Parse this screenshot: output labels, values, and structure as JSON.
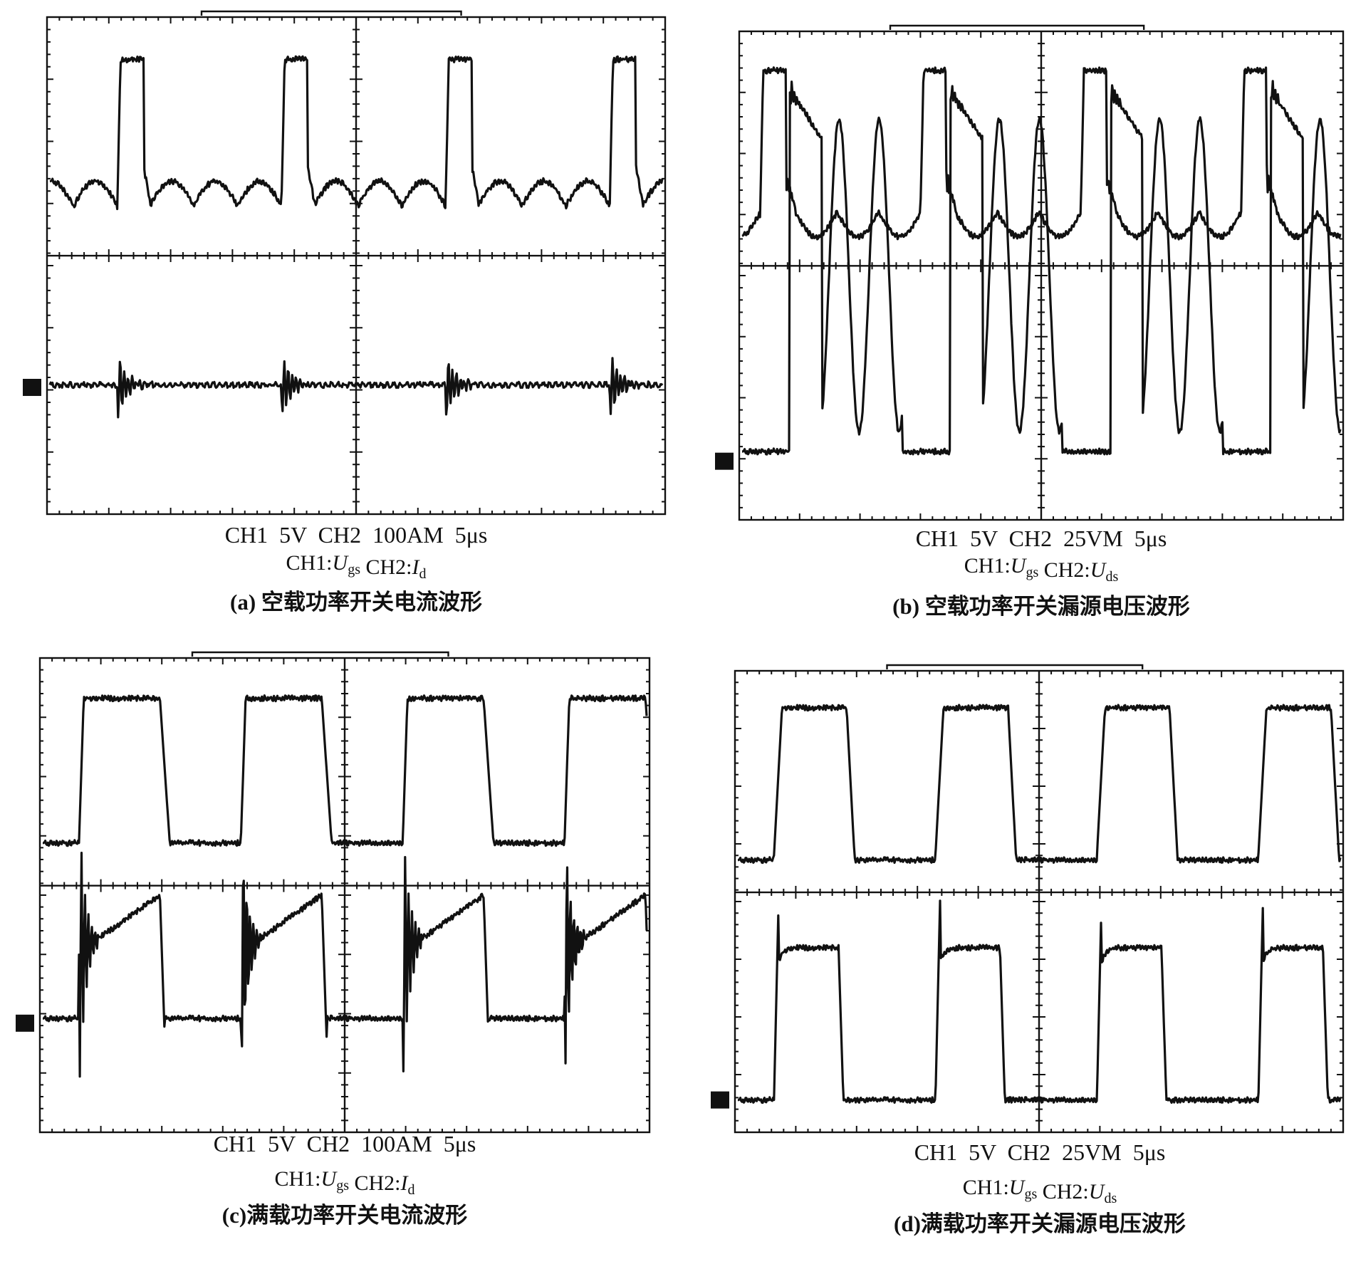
{
  "panels": [
    {
      "settings": "CH1  5V  CH2  100AM  5μs",
      "channels": [
        {
          "label": "CH1:",
          "symbol": "U",
          "subscript": "gs"
        },
        {
          "label": "CH2:",
          "symbol": "I",
          "subscript": "d"
        }
      ],
      "caption": "(a) 空载功率开关电流波形"
    },
    {
      "settings": "CH1  5V  CH2  25VM  5μs",
      "channels": [
        {
          "label": "CH1:",
          "symbol": "U",
          "subscript": "gs"
        },
        {
          "label": "CH2:",
          "symbol": "U",
          "subscript": "ds"
        }
      ],
      "caption": "(b) 空载功率开关漏源电压波形"
    },
    {
      "settings": "CH1  5V  CH2  100AM  5μs",
      "channels": [
        {
          "label": "CH1:",
          "symbol": "U",
          "subscript": "gs"
        },
        {
          "label": "CH2:",
          "symbol": "I",
          "subscript": "d"
        }
      ],
      "caption": "(c)满载功率开关电流波形"
    },
    {
      "settings": "CH1  5V  CH2  25VM  5μs",
      "channels": [
        {
          "label": "CH1:",
          "symbol": "U",
          "subscript": "gs"
        },
        {
          "label": "CH2:",
          "symbol": "U",
          "subscript": "ds"
        }
      ],
      "caption": "(d)满载功率开关漏源电压波形"
    }
  ]
}
